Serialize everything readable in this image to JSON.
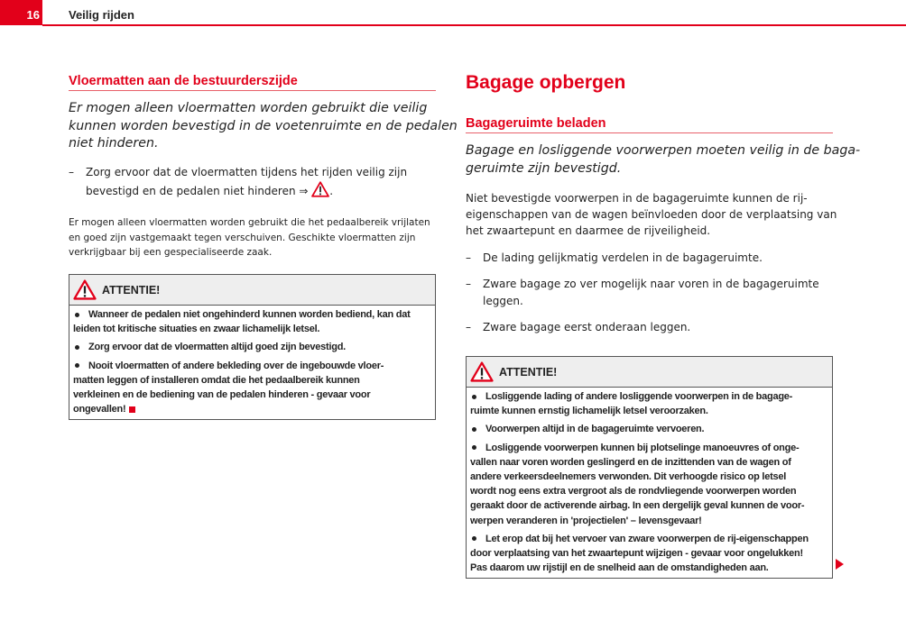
{
  "header": {
    "page_number": "16",
    "chapter": "Veilig rijden"
  },
  "colors": {
    "accent": "#e2001a",
    "box_header_bg": "#eeeeee"
  },
  "left": {
    "heading": "Vloermatten aan de bestuurderszijde",
    "intro_lines": [
      "Er mogen alleen vloermatten worden gebruikt die veilig",
      "kunnen worden bevestigd in de voetenruimte en de pedalen",
      "niet hinderen."
    ],
    "dash_items": [
      {
        "mark": "–",
        "lines": [
          "Zorg ervoor dat de vloermatten tijdens het rijden veilig zijn",
          "bevestigd en de pedalen niet hinderen ⇒ "
        ],
        "ref_icon": "warning-triangle-icon",
        "tail": "."
      }
    ],
    "note_lines": [
      "Er mogen alleen vloermatten worden gebruikt die het pedaalbereik vrijlaten",
      "en goed zijn vastgemaakt tegen verschuiven. Geschikte vloermatten zijn",
      "verkrijgbaar bij een gespecialiseerde zaak."
    ],
    "warning": {
      "title": "ATTENTIE!",
      "items": [
        [
          "Wanneer de pedalen niet ongehinderd kunnen worden bediend, kan dat",
          "leiden tot kritische situaties en zwaar lichamelijk letsel."
        ],
        [
          "Zorg ervoor dat de vloermatten altijd goed zijn bevestigd."
        ],
        [
          "Nooit vloermatten of andere bekleding over de ingebouwde vloer-",
          "matten leggen of installeren omdat die het pedaalbereik kunnen",
          "verkleinen en de bediening van de pedalen hinderen - gevaar voor",
          "ongevallen!"
        ]
      ]
    }
  },
  "right": {
    "title": "Bagage opbergen",
    "heading": "Bagageruimte beladen",
    "intro_lines": [
      "Bagage en losliggende voorwerpen moeten veilig in de baga-",
      "geruimte zijn bevestigd."
    ],
    "body_lines": [
      "Niet bevestigde voorwerpen in de bagageruimte kunnen de rij-",
      "eigenschappen van de wagen beïnvloeden door de verplaatsing van",
      "het zwaartepunt en daarmee de rijveiligheid."
    ],
    "dash_items": [
      {
        "mark": "–",
        "lines": [
          "De lading gelijkmatig verdelen in de bagageruimte."
        ]
      },
      {
        "mark": "–",
        "lines": [
          "Zware bagage zo ver mogelijk naar voren in de bagageruimte",
          "leggen."
        ]
      },
      {
        "mark": "–",
        "lines": [
          "Zware bagage eerst onderaan leggen."
        ]
      }
    ],
    "warning": {
      "title": "ATTENTIE!",
      "items": [
        [
          "Losliggende lading of andere losliggende voorwerpen in de bagage-",
          "ruimte kunnen ernstig lichamelijk letsel veroorzaken."
        ],
        [
          "Voorwerpen altijd in de bagageruimte vervoeren."
        ],
        [
          "Losliggende voorwerpen kunnen bij plotselinge manoeuvres of onge-",
          "vallen naar voren worden geslingerd en de inzittenden van de wagen of",
          "andere verkeersdeelnemers verwonden. Dit verhoogde risico op letsel",
          "wordt nog eens extra vergroot als de rondvliegende voorwerpen worden",
          "geraakt door de activerende airbag. In een dergelijk geval kunnen de voor-",
          "werpen veranderen in 'projectielen' – levensgevaar!"
        ],
        [
          "Let erop dat bij het vervoer van zware voorwerpen de rij-eigenschappen",
          "door verplaatsing van het zwaartepunt wijzigen - gevaar voor ongelukken!",
          "Pas daarom uw rijstijl en de snelheid aan de omstandigheden aan."
        ]
      ]
    },
    "continue_icon": "continue-arrow-icon"
  }
}
